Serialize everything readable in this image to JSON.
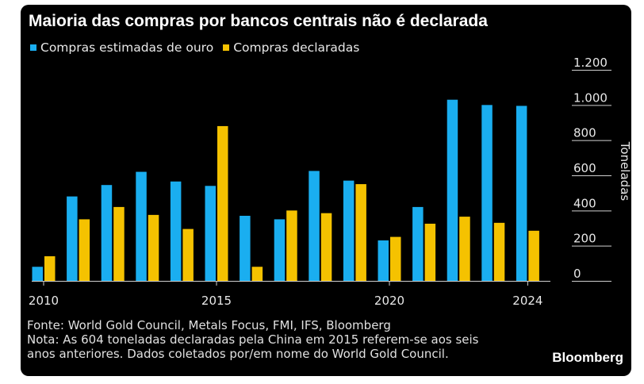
{
  "title": "Maioria das compras por bancos centrais não é declarada",
  "legend": [
    {
      "label": "Compras estimadas de ouro",
      "color": "#1aaef0"
    },
    {
      "label": "Compras declaradas",
      "color": "#f5c200"
    }
  ],
  "chart_data": {
    "type": "bar",
    "title": "Maioria das compras por bancos centrais não é declarada",
    "ylabel": "Toneladas",
    "xlabel": "",
    "ylim": [
      0,
      1200
    ],
    "yticks": [
      0,
      200,
      400,
      600,
      800,
      1000,
      1200
    ],
    "ytick_labels": [
      "0",
      "200",
      "400",
      "600",
      "800",
      "1.000",
      "1.200"
    ],
    "xtick_labels": [
      "2010",
      "2015",
      "2020",
      "2024"
    ],
    "categories": [
      "2010",
      "2011",
      "2012",
      "2013",
      "2014",
      "2015",
      "2016",
      "2017",
      "2018",
      "2019",
      "2020",
      "2021",
      "2022",
      "2023",
      "2024"
    ],
    "series": [
      {
        "name": "Compras estimadas de ouro",
        "color": "#1aaef0",
        "values": [
          80,
          480,
          545,
          620,
          565,
          540,
          370,
          350,
          625,
          570,
          230,
          420,
          1030,
          1000,
          995
        ]
      },
      {
        "name": "Compras declaradas",
        "color": "#f5c200",
        "values": [
          140,
          350,
          420,
          375,
          295,
          880,
          80,
          400,
          385,
          550,
          250,
          325,
          365,
          330,
          285
        ]
      }
    ],
    "grid": false,
    "legend_position": "top-left",
    "y_axis_side": "right"
  },
  "footer": {
    "source": "Fonte: World Gold Council, Metals Focus, FMI, IFS, Bloomberg",
    "note_line1": "Nota: As 604 toneladas declaradas pela China em 2015 referem-se aos seis",
    "note_line2": "anos anteriores. Dados coletados por/em nome do World Gold Council.",
    "brand": "Bloomberg"
  }
}
